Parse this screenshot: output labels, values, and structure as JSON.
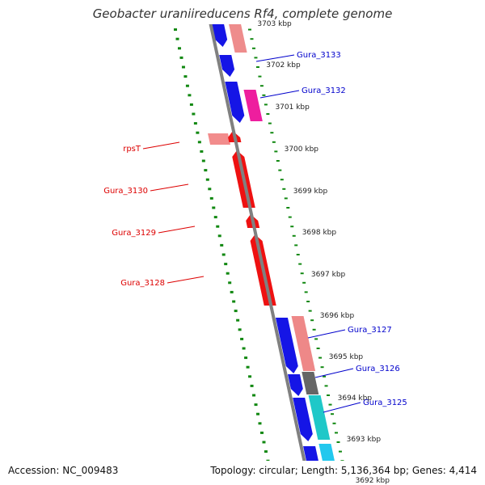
{
  "title": "Geobacter uraniireducens Rf4, complete genome",
  "footer": {
    "accession": "Accession: NC_009483",
    "summary": "Topology: circular; Length: 5,136,364 bp; Genes: 4,414"
  },
  "colors": {
    "backbone": "#808080",
    "forward_label": "#0000cc",
    "reverse_label": "#dd0000",
    "dots": "#118811"
  },
  "ticks": [
    {
      "label": "3703 kbp"
    },
    {
      "label": "3702 kbp"
    },
    {
      "label": "3701 kbp"
    },
    {
      "label": "3700 kbp"
    },
    {
      "label": "3699 kbp"
    },
    {
      "label": "3698 kbp"
    },
    {
      "label": "3697 kbp"
    },
    {
      "label": "3696 kbp"
    },
    {
      "label": "3695 kbp"
    },
    {
      "label": "3694 kbp"
    },
    {
      "label": "3693 kbp"
    },
    {
      "label": "3692 kbp"
    }
  ],
  "genes": [
    {
      "label": "Gura_3133",
      "strand": "forward"
    },
    {
      "label": "Gura_3132",
      "strand": "forward"
    },
    {
      "label": "rpsT",
      "strand": "reverse"
    },
    {
      "label": "Gura_3130",
      "strand": "reverse"
    },
    {
      "label": "Gura_3129",
      "strand": "reverse"
    },
    {
      "label": "Gura_3128",
      "strand": "reverse"
    },
    {
      "label": "Gura_3127",
      "strand": "forward"
    },
    {
      "label": "Gura_3126",
      "strand": "forward"
    },
    {
      "label": "Gura_3125",
      "strand": "forward"
    }
  ]
}
